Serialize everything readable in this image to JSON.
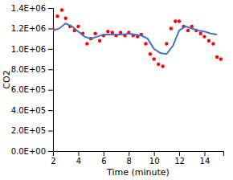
{
  "chart_data": {
    "type": "line",
    "xlabel": "Time (minute)",
    "ylabel": "CO2",
    "xlim": [
      2,
      15.5
    ],
    "ylim": [
      0,
      1400000
    ],
    "xticks": [
      2,
      4,
      6,
      8,
      10,
      12,
      14
    ],
    "yticks": [
      {
        "value": 0,
        "label": "0.0E+00"
      },
      {
        "value": 200000,
        "label": "2.0E+05"
      },
      {
        "value": 400000,
        "label": "4.0E+05"
      },
      {
        "value": 600000,
        "label": "6.0E+05"
      },
      {
        "value": 800000,
        "label": "8.0E+05"
      },
      {
        "value": 1000000,
        "label": "1.0E+06"
      },
      {
        "value": 1200000,
        "label": "1.2E+06"
      },
      {
        "value": 1400000,
        "label": "1.4E+06"
      }
    ],
    "series": [
      {
        "type": "scatter",
        "color": "#FF0000",
        "marker": "dot",
        "x": [
          2.0,
          2.35,
          2.7,
          3.0,
          3.35,
          3.7,
          4.0,
          4.35,
          4.7,
          5.0,
          5.35,
          5.7,
          6.0,
          6.35,
          6.7,
          7.0,
          7.35,
          7.7,
          8.0,
          8.35,
          8.7,
          9.0,
          9.35,
          9.7,
          10.0,
          10.35,
          10.7,
          11.0,
          11.35,
          11.7,
          12.0,
          12.35,
          12.7,
          13.0,
          13.35,
          13.7,
          14.0,
          14.35,
          14.7,
          15.0,
          15.3
        ],
        "values": [
          1190000,
          1320000,
          1380000,
          1300000,
          1220000,
          1180000,
          1220000,
          1150000,
          1050000,
          1100000,
          1150000,
          1080000,
          1130000,
          1170000,
          1160000,
          1130000,
          1160000,
          1130000,
          1160000,
          1130000,
          1120000,
          1140000,
          1050000,
          950000,
          900000,
          850000,
          830000,
          1050000,
          1200000,
          1270000,
          1270000,
          1220000,
          1180000,
          1220000,
          1180000,
          1150000,
          1120000,
          1080000,
          1050000,
          920000,
          900000
        ]
      },
      {
        "type": "line",
        "color": "#4472C4",
        "line_style": "solid",
        "x": [
          2.0,
          2.5,
          3.0,
          3.5,
          4.0,
          4.5,
          5.0,
          5.5,
          6.0,
          6.5,
          7.0,
          7.5,
          8.0,
          8.5,
          9.0,
          9.5,
          10.0,
          10.5,
          11.0,
          11.5,
          12.0,
          12.5,
          13.0,
          13.5,
          14.0,
          14.5,
          15.0
        ],
        "values": [
          1180000,
          1200000,
          1250000,
          1220000,
          1170000,
          1120000,
          1100000,
          1120000,
          1140000,
          1140000,
          1140000,
          1140000,
          1150000,
          1140000,
          1130000,
          1100000,
          1000000,
          960000,
          950000,
          1030000,
          1180000,
          1220000,
          1200000,
          1180000,
          1170000,
          1150000,
          1140000
        ]
      }
    ]
  }
}
